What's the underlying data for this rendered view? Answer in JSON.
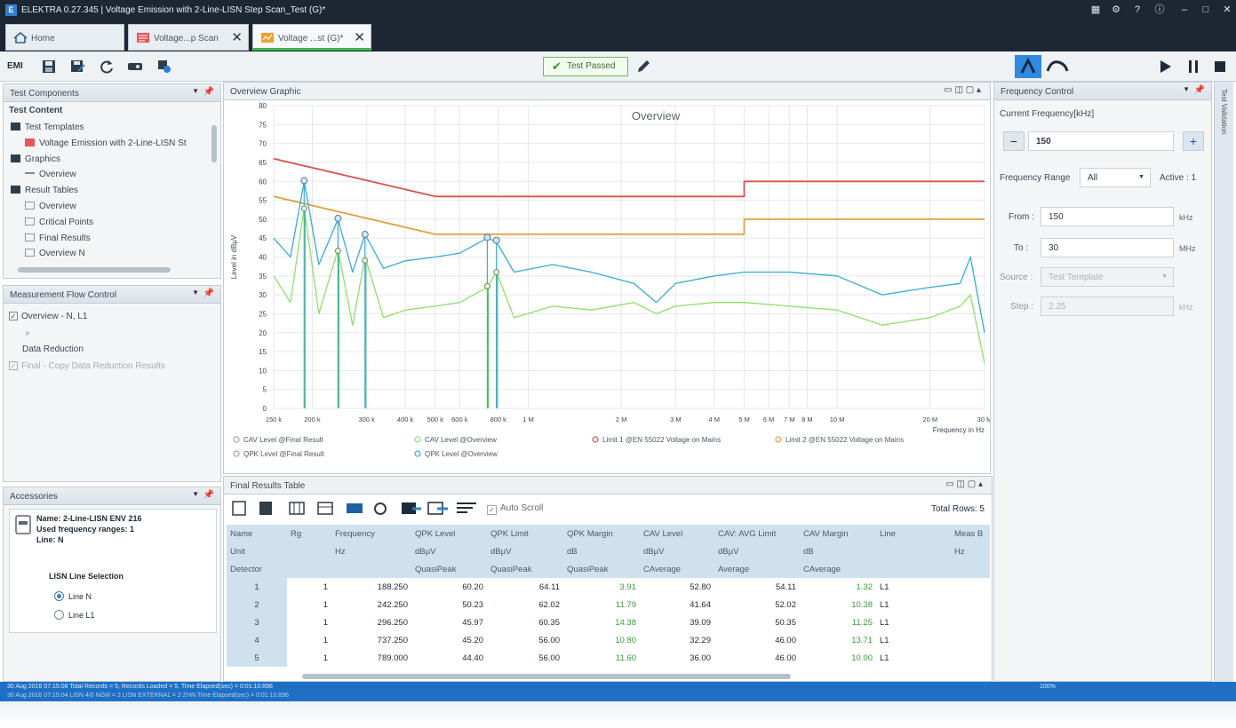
{
  "titlebar": {
    "logo": "E",
    "title": "ELEKTRA 0.27.345 | Voltage Emission with 2-Line-LISN Step Scan_Test (G)*"
  },
  "tabs": [
    {
      "label": "Home"
    },
    {
      "label": "Voltage...p Scan"
    },
    {
      "label": "Voltage ...st (G)*"
    }
  ],
  "toolbar": {
    "emi_label": "EMI",
    "test_passed_label": "Test Passed"
  },
  "test_components": {
    "header": "Test Components",
    "section": "Test Content",
    "items": [
      {
        "label": "Test Templates",
        "level": 0
      },
      {
        "label": "Voltage Emission with 2-Line-LISN St",
        "level": 1
      },
      {
        "label": "Graphics",
        "level": 0
      },
      {
        "label": "Overview",
        "level": 1
      },
      {
        "label": "Result Tables",
        "level": 0
      },
      {
        "label": "Overview",
        "level": 1
      },
      {
        "label": "Critical Points",
        "level": 1
      },
      {
        "label": "Final Results",
        "level": 1
      },
      {
        "label": "Overview N",
        "level": 1
      }
    ]
  },
  "flow_control": {
    "header": "Measurement Flow Control",
    "item1": "Overview - N, L1",
    "item2": "Data Reduction",
    "item3": "Final - Copy Data Reduction Results"
  },
  "accessories": {
    "header": "Accessories",
    "name": "Name: 2-Line-LISN ENV 216",
    "freq_ranges": "Used frequency ranges: 1",
    "line": "Line: N",
    "lisn_title": "LISN Line Selection",
    "options": [
      "Line N",
      "Line L1"
    ],
    "selected": "Line N"
  },
  "graph": {
    "header": "Overview Graphic"
  },
  "chart_data": {
    "type": "line",
    "title": "Overview",
    "ylabel": "Level in dBµV",
    "xlabel": "Frequency in Hz",
    "x_scale": "log",
    "xlim": [
      150000,
      30000000
    ],
    "ylim": [
      0,
      80
    ],
    "grid": true,
    "x_ticks": [
      {
        "v": 150000,
        "label": "150 k"
      },
      {
        "v": 200000,
        "label": "200 k"
      },
      {
        "v": 300000,
        "label": "300 k"
      },
      {
        "v": 400000,
        "label": "400 k"
      },
      {
        "v": 500000,
        "label": "500 k"
      },
      {
        "v": 600000,
        "label": "600 k"
      },
      {
        "v": 800000,
        "label": "800 k"
      },
      {
        "v": 1000000,
        "label": "1 M"
      },
      {
        "v": 2000000,
        "label": "2 M"
      },
      {
        "v": 3000000,
        "label": "3 M"
      },
      {
        "v": 4000000,
        "label": "4 M"
      },
      {
        "v": 5000000,
        "label": "5 M"
      },
      {
        "v": 6000000,
        "label": "6 M"
      },
      {
        "v": 7000000,
        "label": "7 M"
      },
      {
        "v": 8000000,
        "label": "8 M"
      },
      {
        "v": 10000000,
        "label": "10 M"
      },
      {
        "v": 20000000,
        "label": "20 M"
      },
      {
        "v": 30000000,
        "label": "30 M"
      }
    ],
    "y_ticks": [
      0,
      5,
      10,
      15,
      20,
      25,
      30,
      35,
      40,
      45,
      50,
      55,
      60,
      65,
      70,
      75,
      80
    ],
    "series": [
      {
        "name": "Limit 1 @EN 55022 Voltage on Mains",
        "color": "#d9534f",
        "x": [
          150000,
          500000,
          5000000,
          5000000,
          30000000
        ],
        "y": [
          66,
          56,
          56,
          60,
          60
        ]
      },
      {
        "name": "Limit 2 @EN 55022 Voltage on Mains",
        "color": "#e0a040",
        "x": [
          150000,
          500000,
          5000000,
          5000000,
          30000000
        ],
        "y": [
          56,
          46,
          46,
          50,
          50
        ]
      },
      {
        "name": "QPK Level @Overview",
        "color": "#3aa9d6",
        "x": [
          150000,
          170000,
          188250,
          210000,
          242250,
          270000,
          296250,
          340000,
          400000,
          500000,
          600000,
          737250,
          789000,
          900000,
          1200000,
          1600000,
          2200000,
          2600000,
          3000000,
          4000000,
          5000000,
          7000000,
          10000000,
          14000000,
          20000000,
          25000000,
          27000000,
          30000000
        ],
        "y": [
          45,
          40,
          60,
          38,
          50,
          36,
          46,
          37,
          39,
          40,
          41,
          45,
          44,
          36,
          38,
          36,
          33,
          28,
          33,
          35,
          36,
          36,
          35,
          30,
          32,
          33,
          40,
          20
        ]
      },
      {
        "name": "CAV Level @Overview",
        "color": "#8ee06a",
        "x": [
          150000,
          170000,
          188250,
          210000,
          242250,
          270000,
          296250,
          340000,
          400000,
          500000,
          600000,
          737250,
          789000,
          900000,
          1200000,
          1600000,
          2200000,
          2600000,
          3000000,
          4000000,
          5000000,
          7000000,
          10000000,
          14000000,
          20000000,
          25000000,
          27000000,
          30000000
        ],
        "y": [
          35,
          28,
          53,
          25,
          42,
          22,
          40,
          24,
          26,
          27,
          28,
          32,
          36,
          24,
          27,
          26,
          28,
          25,
          27,
          28,
          28,
          27,
          26,
          22,
          24,
          27,
          30,
          12
        ]
      }
    ],
    "markers": {
      "qpk_final": {
        "x": [
          188250,
          242250,
          296250,
          737250,
          789000
        ],
        "y": [
          60.2,
          50.23,
          45.97,
          45.2,
          44.4
        ]
      },
      "cav_final": {
        "x": [
          188250,
          242250,
          296250,
          737250,
          789000
        ],
        "y": [
          52.8,
          41.64,
          39.09,
          32.29,
          36.0
        ]
      }
    },
    "legend": [
      {
        "label": "CAV Level @Final Result",
        "color": "#9aa7b3"
      },
      {
        "label": "CAV Level @Overview",
        "color": "#8ee06a"
      },
      {
        "label": "Limit 1 @EN 55022 Voltage on Mains",
        "color": "#d9534f"
      },
      {
        "label": "Limit 2 @EN 55022 Voltage on Mains",
        "color": "#e0a040"
      },
      {
        "label": "QPK Level @Final Result",
        "color": "#9aa7b3"
      },
      {
        "label": "QPK Level @Overview",
        "color": "#3aa9d6"
      }
    ]
  },
  "results": {
    "header": "Final Results Table",
    "auto_scroll": "Auto Scroll",
    "total_rows": "Total Rows: 5",
    "columns": [
      "Name",
      "Rg",
      "Frequency",
      "QPK Level",
      "QPK Limit",
      "QPK Margin",
      "CAV Level",
      "CAV: AVG Limit",
      "CAV Margin",
      "Line",
      "Meas B"
    ],
    "units": [
      "Unit",
      "",
      "Hz",
      "dBµV",
      "dBµV",
      "dB",
      "dBµV",
      "dBµV",
      "dB",
      "",
      "Hz"
    ],
    "detectors": [
      "Detector",
      "",
      "",
      "QuasiPeak",
      "QuasiPeak",
      "QuasiPeak",
      "CAverage",
      "Average",
      "CAverage",
      "",
      ""
    ],
    "rows": [
      [
        "1",
        "1",
        "188.250",
        "60.20",
        "64.11",
        "3.91",
        "52.80",
        "54.11",
        "1.32",
        "L1"
      ],
      [
        "2",
        "1",
        "242.250",
        "50.23",
        "62.02",
        "11.79",
        "41.64",
        "52.02",
        "10.38",
        "L1"
      ],
      [
        "3",
        "1",
        "296.250",
        "45.97",
        "60.35",
        "14.38",
        "39.09",
        "50.35",
        "11.25",
        "L1"
      ],
      [
        "4",
        "1",
        "737.250",
        "45.20",
        "56.00",
        "10.80",
        "32.29",
        "46.00",
        "13.71",
        "L1"
      ],
      [
        "5",
        "1",
        "789.000",
        "44.40",
        "56.00",
        "11.60",
        "36.00",
        "46.00",
        "10.00",
        "L1"
      ]
    ]
  },
  "frequency_control": {
    "header": "Frequency Control",
    "current_label": "Current Frequency[kHz]",
    "current_value": "150",
    "range_label": "Frequency Range",
    "range_value": "All",
    "active_label": "Active : 1",
    "from_label": "From :",
    "from_value": "150",
    "from_unit": "kHz",
    "to_label": "To :",
    "to_value": "30",
    "to_unit": "MHz",
    "source_label": "Source :",
    "source_value": "Test Template",
    "step_label": "Step :",
    "step_value": "2.25",
    "step_unit": "kHz"
  },
  "side_tab": "Test Validation",
  "statusbar": {
    "line1": "30 Aug 2016 07:15:08  Total Records = 5, Records Loaded = 5, Time Elapsed(sec) = 0:01:10:896",
    "line2": "30 Aug 2016 07:15:04  LISN 4/0 NGM  = 2 LISN EXTERNAL = 2 ZHN  Time Elapsed(sec) = 0:01:10:896",
    "zoom": "100%"
  }
}
